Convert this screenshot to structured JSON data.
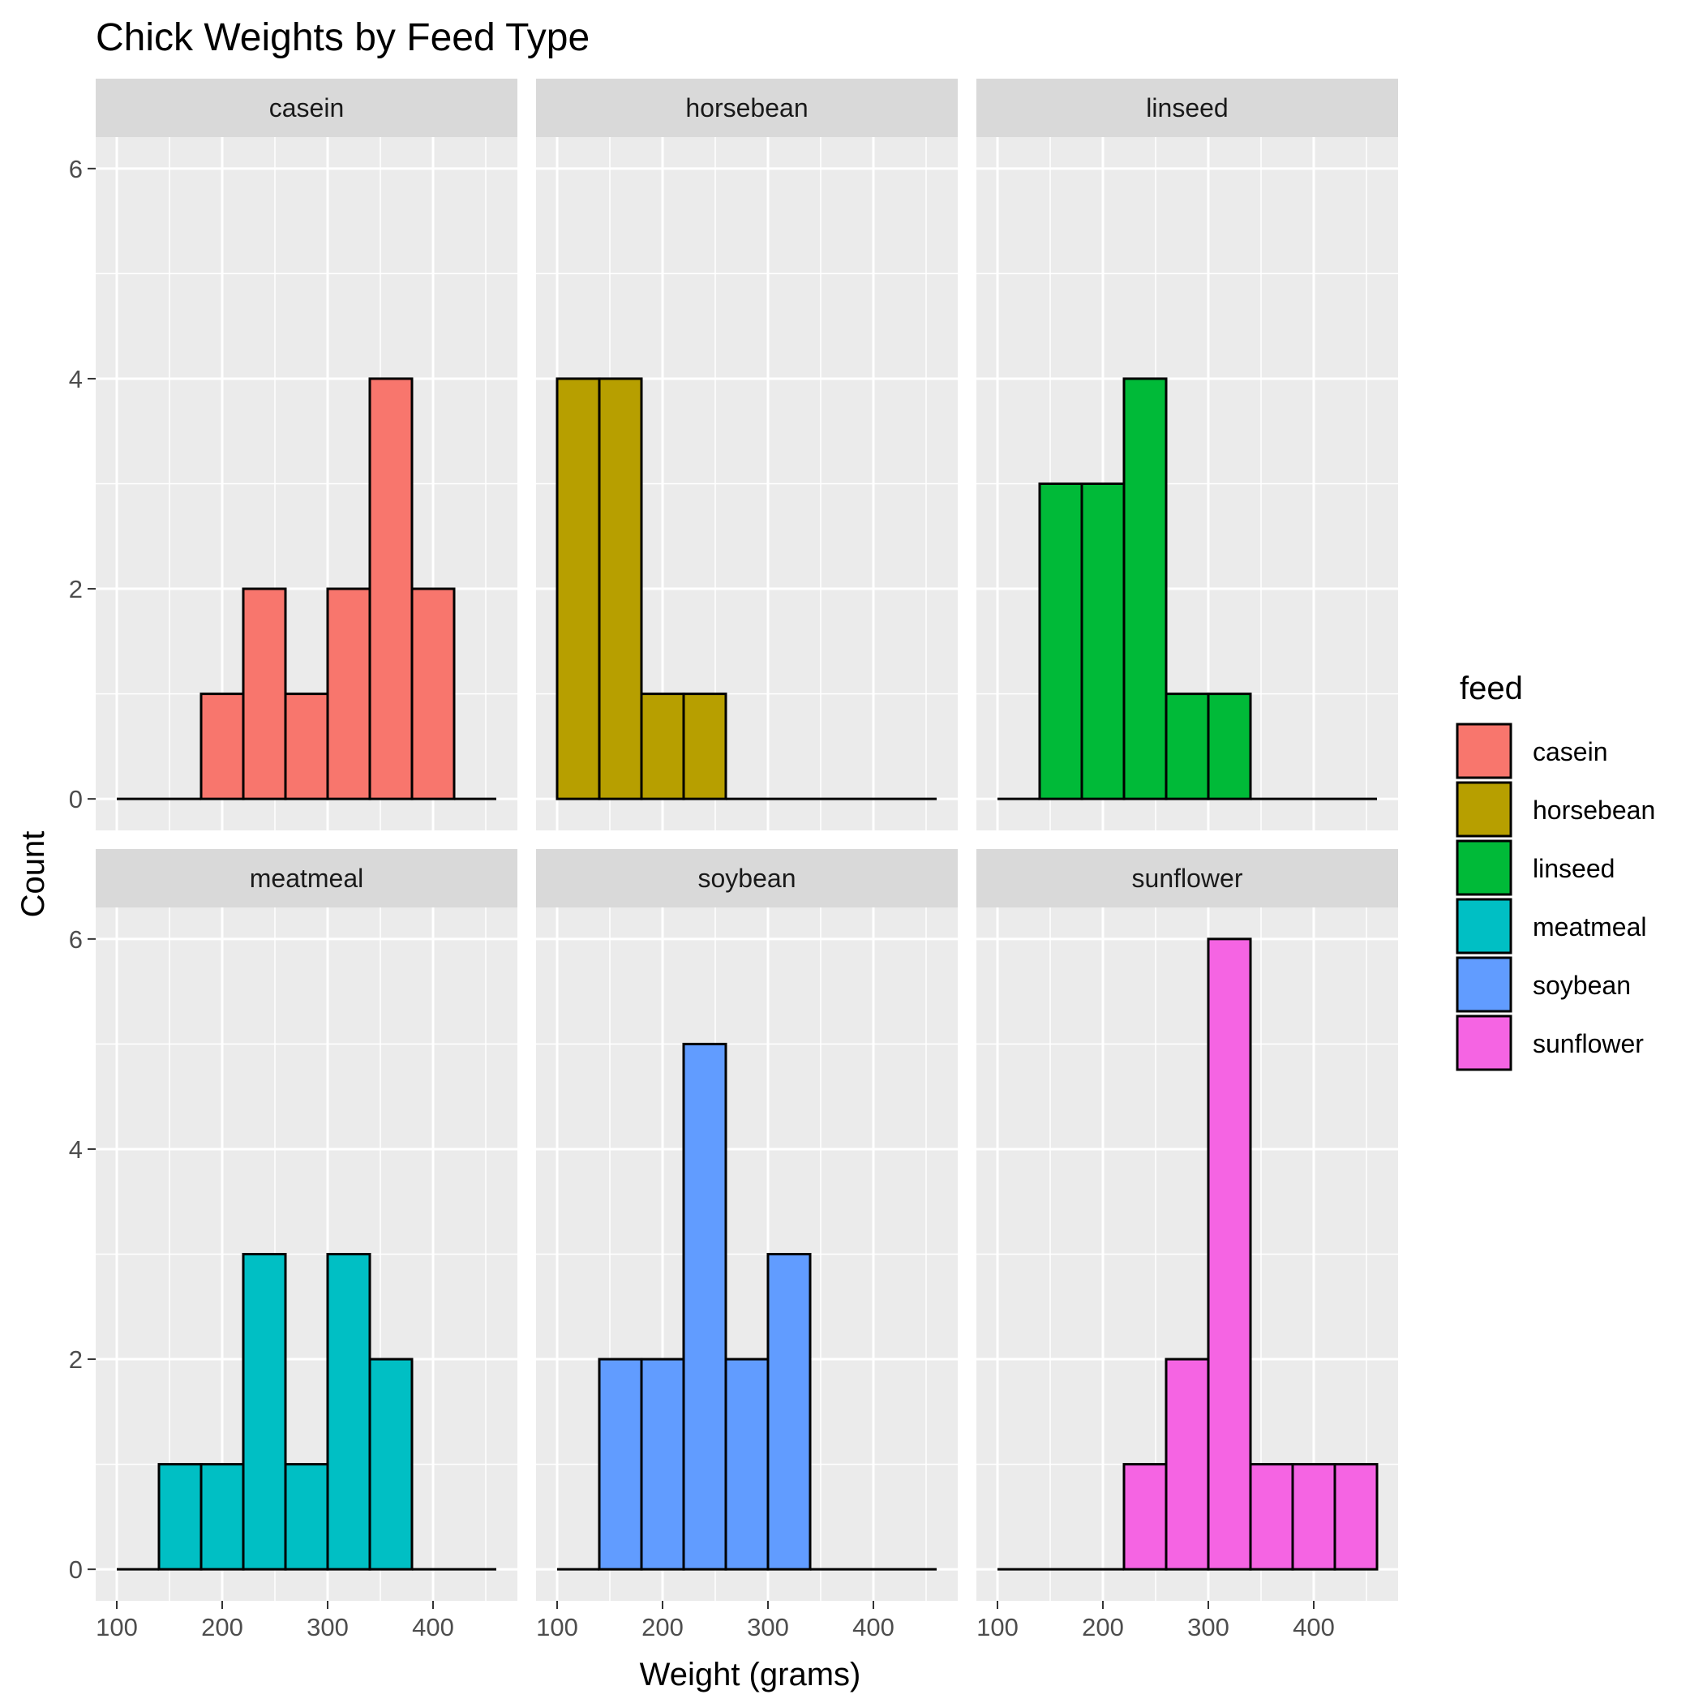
{
  "chart_data": {
    "type": "bar",
    "title": "Chick Weights by Feed Type",
    "xlabel": "Weight (grams)",
    "ylabel": "Count",
    "xlim": [
      80,
      480
    ],
    "ylim": [
      -0.3,
      6.3
    ],
    "x_ticks": [
      100,
      200,
      300,
      400
    ],
    "y_ticks": [
      0,
      2,
      4,
      6
    ],
    "y_minor_ticks": [
      1,
      3,
      5
    ],
    "x_minor_ticks": [
      150,
      250,
      350,
      450
    ],
    "bin_edges": [
      100,
      140,
      180,
      220,
      260,
      300,
      340,
      380,
      420,
      460
    ],
    "grid": true,
    "legend": {
      "title": "feed",
      "position": "right"
    },
    "series": [
      {
        "name": "casein",
        "color": "#F8766D",
        "values": [
          0,
          0,
          1,
          2,
          1,
          2,
          4,
          2,
          0
        ]
      },
      {
        "name": "horsebean",
        "color": "#B79F00",
        "values": [
          4,
          4,
          1,
          1,
          0,
          0,
          0,
          0,
          0
        ]
      },
      {
        "name": "linseed",
        "color": "#00BA38",
        "values": [
          0,
          3,
          3,
          4,
          1,
          1,
          0,
          0,
          0
        ]
      },
      {
        "name": "meatmeal",
        "color": "#00BFC4",
        "values": [
          0,
          1,
          1,
          3,
          1,
          3,
          2,
          0,
          0
        ]
      },
      {
        "name": "soybean",
        "color": "#619CFF",
        "values": [
          0,
          2,
          2,
          5,
          2,
          3,
          0,
          0,
          0
        ]
      },
      {
        "name": "sunflower",
        "color": "#F564E3",
        "values": [
          0,
          0,
          0,
          1,
          2,
          6,
          1,
          1,
          1
        ]
      }
    ]
  }
}
